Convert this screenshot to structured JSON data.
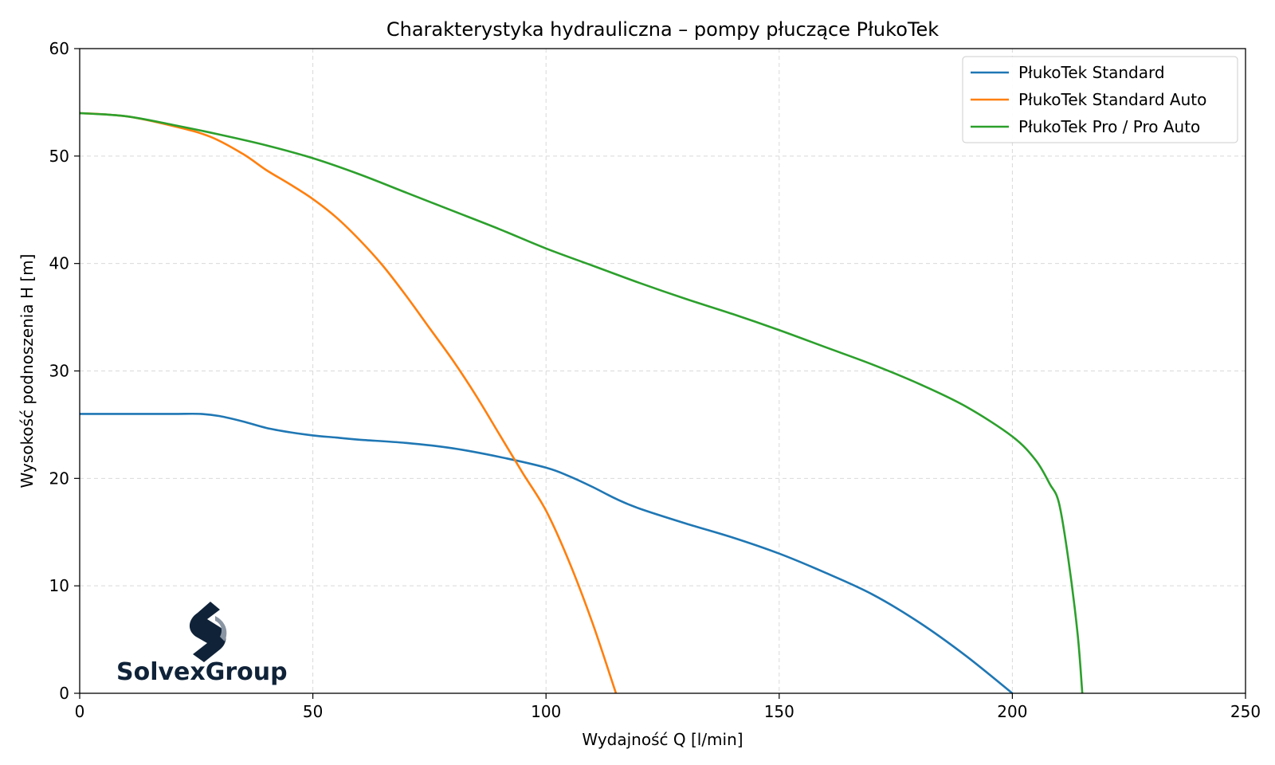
{
  "chart_data": {
    "type": "line",
    "title": "Charakterystyka hydrauliczna – pompy płuczące PłukoTek",
    "xlabel": "Wydajność Q [l/min]",
    "ylabel": "Wysokość podnoszenia H [m]",
    "xlim": [
      0,
      250
    ],
    "ylim": [
      0,
      60
    ],
    "xticks": [
      0,
      50,
      100,
      150,
      200,
      250
    ],
    "yticks": [
      0,
      10,
      20,
      30,
      40,
      50,
      60
    ],
    "grid": true,
    "legend_position": "top-right",
    "series": [
      {
        "name": "PłukoTek Standard",
        "color": "#1f77b4",
        "points": [
          [
            0,
            26
          ],
          [
            10,
            26
          ],
          [
            20,
            26
          ],
          [
            26,
            26
          ],
          [
            30,
            25.8
          ],
          [
            35,
            25.3
          ],
          [
            40,
            24.7
          ],
          [
            45,
            24.3
          ],
          [
            50,
            24
          ],
          [
            55,
            23.8
          ],
          [
            60,
            23.6
          ],
          [
            70,
            23.3
          ],
          [
            80,
            22.8
          ],
          [
            90,
            22
          ],
          [
            100,
            21
          ],
          [
            105,
            20.2
          ],
          [
            110,
            19.2
          ],
          [
            115,
            18.1
          ],
          [
            120,
            17.2
          ],
          [
            130,
            15.8
          ],
          [
            140,
            14.5
          ],
          [
            150,
            13
          ],
          [
            160,
            11.2
          ],
          [
            170,
            9.2
          ],
          [
            180,
            6.6
          ],
          [
            190,
            3.5
          ],
          [
            200,
            0
          ]
        ]
      },
      {
        "name": "PłukoTek Standard Auto",
        "color": "#ff7f0e",
        "points": [
          [
            0,
            54
          ],
          [
            10,
            53.7
          ],
          [
            20,
            52.8
          ],
          [
            28,
            51.8
          ],
          [
            35,
            50.2
          ],
          [
            40,
            48.7
          ],
          [
            45,
            47.4
          ],
          [
            50,
            46
          ],
          [
            55,
            44.3
          ],
          [
            60,
            42.2
          ],
          [
            65,
            39.8
          ],
          [
            70,
            37
          ],
          [
            75,
            34
          ],
          [
            80,
            31
          ],
          [
            85,
            27.7
          ],
          [
            90,
            24.1
          ],
          [
            95,
            20.5
          ],
          [
            100,
            17
          ],
          [
            105,
            12.2
          ],
          [
            110,
            6.5
          ],
          [
            115,
            0
          ]
        ]
      },
      {
        "name": "PłukoTek Pro / Pro Auto",
        "color": "#2ca02c",
        "points": [
          [
            0,
            54
          ],
          [
            10,
            53.7
          ],
          [
            20,
            52.9
          ],
          [
            30,
            52
          ],
          [
            40,
            51
          ],
          [
            50,
            49.8
          ],
          [
            60,
            48.3
          ],
          [
            70,
            46.6
          ],
          [
            80,
            44.9
          ],
          [
            90,
            43.2
          ],
          [
            100,
            41.4
          ],
          [
            110,
            39.8
          ],
          [
            120,
            38.2
          ],
          [
            130,
            36.7
          ],
          [
            140,
            35.3
          ],
          [
            150,
            33.8
          ],
          [
            160,
            32.2
          ],
          [
            170,
            30.6
          ],
          [
            180,
            28.8
          ],
          [
            190,
            26.7
          ],
          [
            200,
            23.9
          ],
          [
            205,
            21.7
          ],
          [
            208,
            19.5
          ],
          [
            210,
            17.7
          ],
          [
            212,
            12.5
          ],
          [
            214,
            5.5
          ],
          [
            215,
            0
          ]
        ]
      }
    ]
  },
  "logo": {
    "text": "SolvexGroup"
  }
}
